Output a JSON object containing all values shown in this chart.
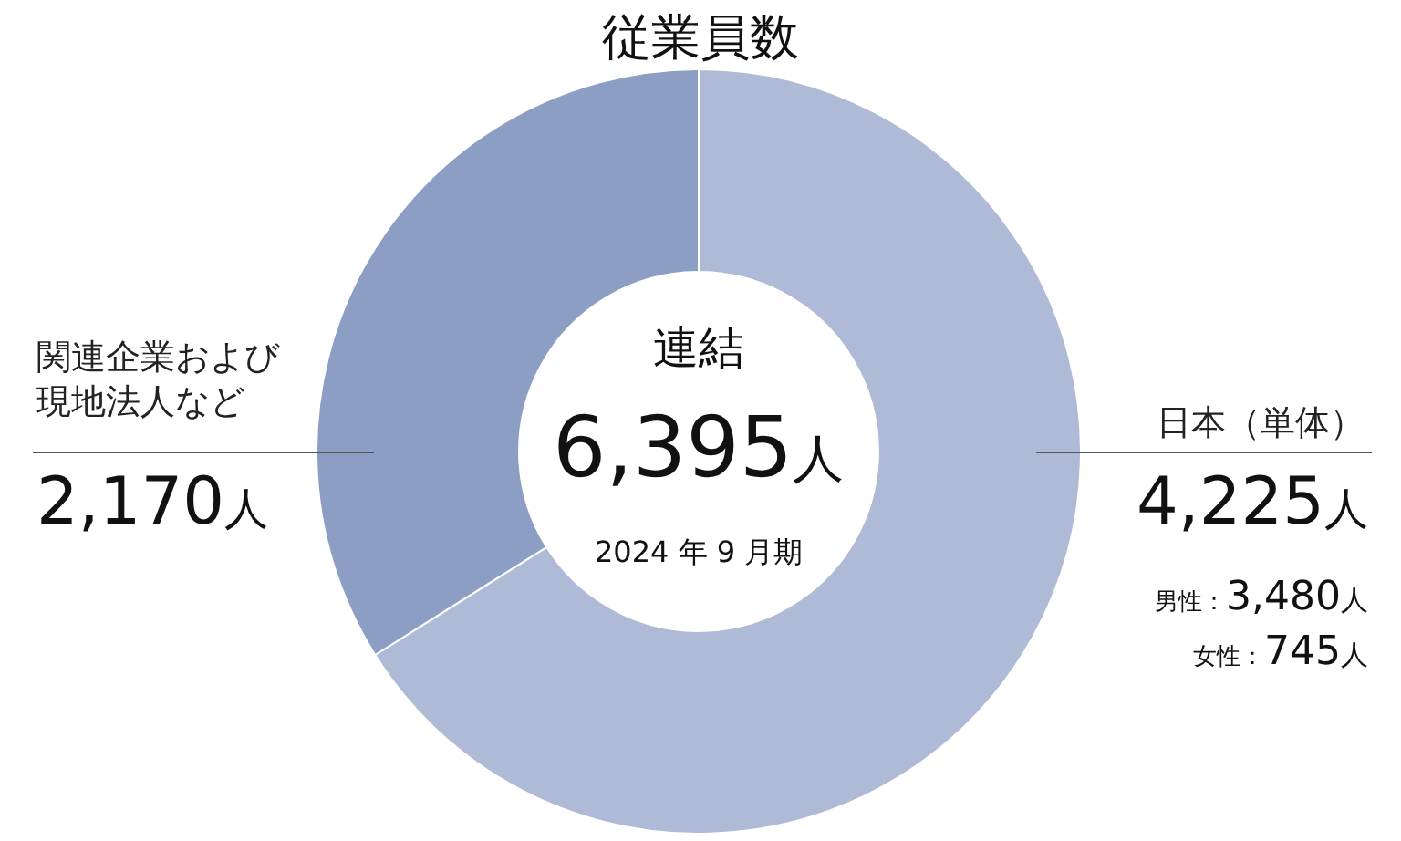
{
  "chart_data": {
    "type": "donut",
    "title": "従業員数",
    "categories": [
      "日本（単体）",
      "関連企業および現地法人など"
    ],
    "values": [
      4225,
      2170
    ],
    "colors": [
      "#aebad6",
      "#8d9ec4"
    ],
    "value_labels": [
      "4,225人",
      "2,170人"
    ],
    "annotations": [
      "連結",
      "6,395人",
      "2024 年 9 月期",
      "男性：3,480人",
      "女性：745人"
    ]
  }
}
